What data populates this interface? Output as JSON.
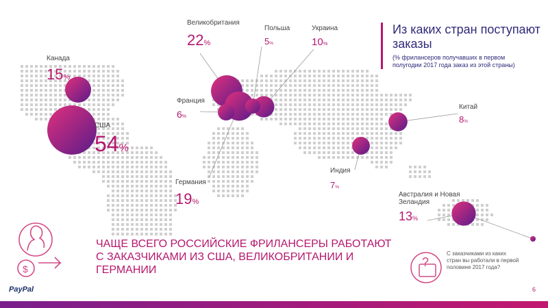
{
  "header": {
    "title": "Из каких стран поступают заказы",
    "subtitle": "(% фрилансеров получавших в первом полугодии 2017 года заказ из этой страны)"
  },
  "headline": "ЧАЩЕ ВСЕГО РОССИЙСКИЕ ФРИЛАНСЕРЫ РАБОТАЮТ С ЗАКАЗЧИКАМИ ИЗ США, ВЕЛИКОБРИТАНИИ И ГЕРМАНИИ",
  "note": "С заказчиками из каких стран вы работали в первой половине 2017 года?",
  "brand": "PayPal",
  "page_number": "6",
  "percent_sign": "%",
  "colors": {
    "accent": "#b5176e",
    "title": "#2f2a7a",
    "dots": "#cfcfcf",
    "bubble_from": "#e0307c",
    "bubble_to": "#5a1c8a"
  },
  "icons": [
    "person-profile-icon",
    "dollar-coin-icon",
    "arrow-right-icon",
    "question-bubble-icon",
    "paypal-logo-icon"
  ],
  "chart_data": {
    "type": "bubble-map",
    "unit": "%",
    "series": [
      {
        "values": [
          {
            "country": "США",
            "value": 54
          },
          {
            "country": "Великобритания",
            "value": 22
          },
          {
            "country": "Германия",
            "value": 19
          },
          {
            "country": "Канада",
            "value": 15
          },
          {
            "country": "Австралия и Новая Зеландия",
            "value": 13
          },
          {
            "country": "Украина",
            "value": 10
          },
          {
            "country": "Китай",
            "value": 8
          },
          {
            "country": "Индия",
            "value": 7
          },
          {
            "country": "Франция",
            "value": 6
          },
          {
            "country": "Польша",
            "value": 5
          }
        ]
      }
    ]
  }
}
